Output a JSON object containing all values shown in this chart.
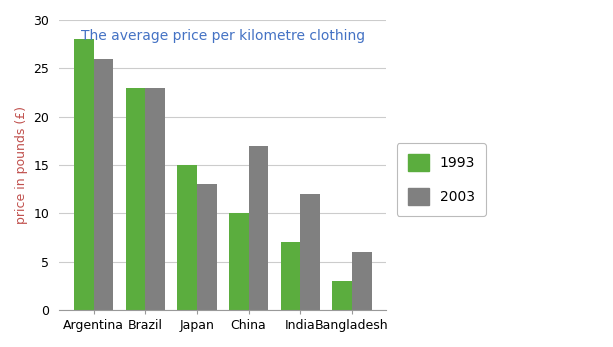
{
  "title": "The average price per kilometre clothing",
  "title_color": "#4472C4",
  "ylabel": "price in pounds (£)",
  "ylabel_color": "#C0504D",
  "categories": [
    "Argentina",
    "Brazil",
    "Japan",
    "China",
    "India",
    "Bangladesh"
  ],
  "values_1993": [
    28,
    23,
    15,
    10,
    7,
    3
  ],
  "values_2003": [
    26,
    23,
    13,
    17,
    12,
    6
  ],
  "color_1993": "#5BAD3E",
  "color_2003": "#808080",
  "ylim": [
    0,
    30
  ],
  "yticks": [
    0,
    5,
    10,
    15,
    20,
    25,
    30
  ],
  "legend_labels": [
    "1993",
    "2003"
  ],
  "bar_width": 0.38,
  "figsize": [
    6.13,
    3.47
  ],
  "dpi": 100,
  "bg_color": "#F2F2F2"
}
